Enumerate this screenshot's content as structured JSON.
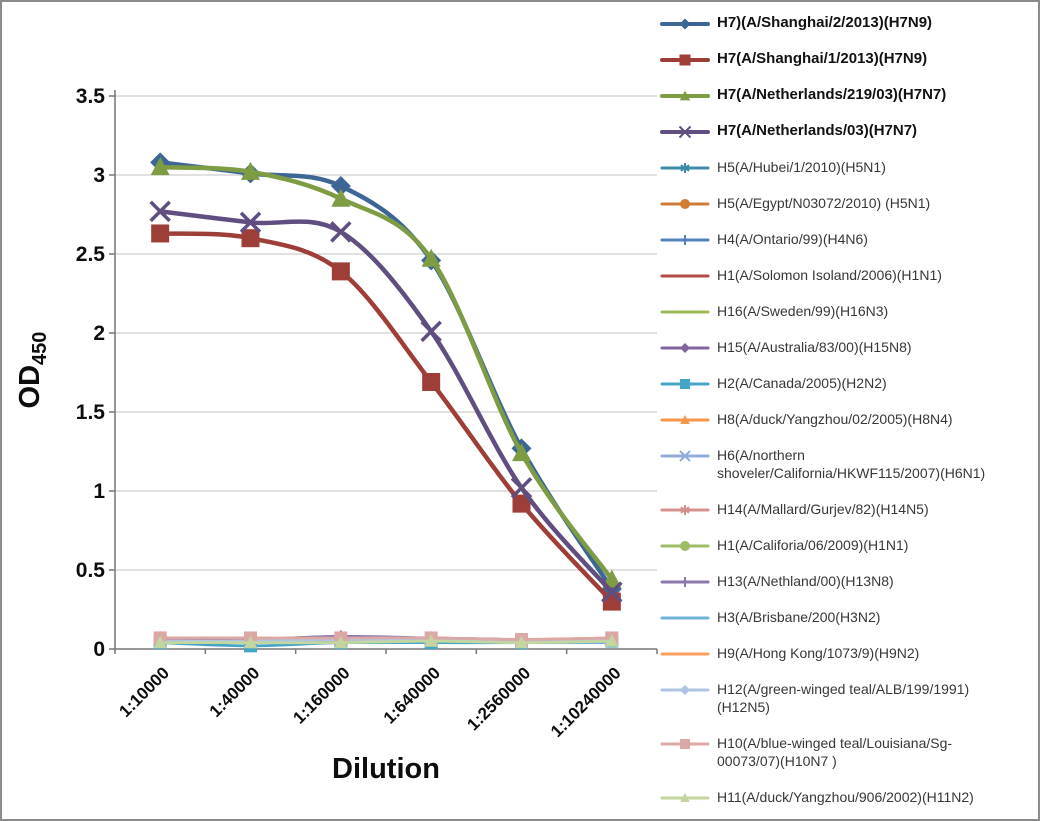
{
  "figure": {
    "border_color": "#8C8C8C",
    "background": "#FFFFFF"
  },
  "axis": {
    "line_color": "#757575",
    "grid_color": "#C3C3C3",
    "grid": true,
    "tick_labels_bold": true
  },
  "chart_data": {
    "type": "line",
    "title": "",
    "xlabel": "Dilution",
    "ylabel_main": "OD",
    "ylabel_sub": "450",
    "ylim": [
      0,
      3.5
    ],
    "ytick_step": 0.5,
    "yticks": [
      "3.5",
      "3",
      "2.5",
      "2",
      "1.5",
      "1",
      "0.5",
      "0"
    ],
    "categories": [
      "1:10000",
      "1:40000",
      "1:160000",
      "1:640000",
      "1:2560000",
      "1:10240000"
    ],
    "legend_position": "right",
    "smoothed_lines": true,
    "series": [
      {
        "name": "H7)(A/Shanghai/2/2013)(H7N9)",
        "color": "#3D6697",
        "marker": "diamond",
        "bold": true,
        "values": [
          3.08,
          3.01,
          2.93,
          2.46,
          1.27,
          0.38
        ]
      },
      {
        "name": "H7(A/Shanghai/1/2013)(H7N9)",
        "color": "#9E3E39",
        "marker": "square",
        "bold": true,
        "values": [
          2.63,
          2.6,
          2.39,
          1.69,
          0.92,
          0.3
        ]
      },
      {
        "name": "H7(A/Netherlands/219/03)(H7N7)",
        "color": "#7D9C43",
        "marker": "triangle",
        "bold": true,
        "values": [
          3.05,
          3.02,
          2.85,
          2.47,
          1.24,
          0.44
        ]
      },
      {
        "name": "H7(A/Netherlands/03)(H7N7)",
        "color": "#604E80",
        "marker": "x",
        "bold": true,
        "values": [
          2.77,
          2.7,
          2.64,
          2.01,
          1.02,
          0.36
        ]
      },
      {
        "name": "H5(A/Hubei/1/2010)(H5N1)",
        "color": "#3E8DA7",
        "marker": "asterisk",
        "bold": false,
        "values": [
          0.05,
          0.05,
          0.06,
          0.05,
          0.05,
          0.05
        ]
      },
      {
        "name": "H5(A/Egypt/N03072/2010) (H5N1)",
        "color": "#D07C34",
        "marker": "circle",
        "bold": false,
        "values": [
          0.06,
          0.06,
          0.06,
          0.06,
          0.06,
          0.06
        ]
      },
      {
        "name": "H4(A/Ontario/99)(H4N6)",
        "color": "#4F81BD",
        "marker": "plus",
        "bold": false,
        "values": [
          0.05,
          0.05,
          0.06,
          0.05,
          0.05,
          0.06
        ]
      },
      {
        "name": "H1(A/Solomon Isoland/2006)(H1N1)",
        "color": "#B04A45",
        "marker": "none",
        "bold": false,
        "values": [
          0.05,
          0.05,
          0.05,
          0.05,
          0.05,
          0.05
        ]
      },
      {
        "name": "H16(A/Sweden/99)(H16N3)",
        "color": "#9BBB59",
        "marker": "none",
        "bold": false,
        "values": [
          0.04,
          0.04,
          0.04,
          0.04,
          0.04,
          0.04
        ]
      },
      {
        "name": "H15(A/Australia/83/00)(H15N8)",
        "color": "#8064A2",
        "marker": "diamond",
        "bold": false,
        "values": [
          0.06,
          0.06,
          0.08,
          0.06,
          0.06,
          0.06
        ]
      },
      {
        "name": "H2(A/Canada/2005)(H2N2)",
        "color": "#45A5C4",
        "marker": "square",
        "bold": false,
        "values": [
          0.04,
          0.02,
          0.04,
          0.04,
          0.04,
          0.05
        ]
      },
      {
        "name": "H8(A/duck/Yangzhou/02/2005)(H8N4)",
        "color": "#F79646",
        "marker": "triangle",
        "bold": false,
        "values": [
          0.07,
          0.07,
          0.06,
          0.07,
          0.06,
          0.07
        ]
      },
      {
        "name": "H6(A/northern shoveler/California/HKWF115/2007)(H6N1)",
        "color": "#93ADDB",
        "marker": "x",
        "bold": false,
        "values": [
          0.05,
          0.05,
          0.05,
          0.06,
          0.05,
          0.05
        ]
      },
      {
        "name": "H14(A/Mallard/Gurjev/82)(H14N5)",
        "color": "#D8908D",
        "marker": "asterisk",
        "bold": false,
        "values": [
          0.06,
          0.06,
          0.07,
          0.06,
          0.06,
          0.06
        ]
      },
      {
        "name": "H1(A/Califoria/06/2009)(H1N1)",
        "color": "#9EBC64",
        "marker": "circle",
        "bold": false,
        "values": [
          0.05,
          0.05,
          0.05,
          0.05,
          0.05,
          0.05
        ]
      },
      {
        "name": "H13(A/Nethland/00)(H13N8)",
        "color": "#8C77AD",
        "marker": "plus",
        "bold": false,
        "values": [
          0.06,
          0.06,
          0.08,
          0.07,
          0.06,
          0.06
        ]
      },
      {
        "name": "H3(A/Brisbane/200(H3N2)",
        "color": "#6FB3D9",
        "marker": "none",
        "bold": false,
        "values": [
          0.04,
          0.04,
          0.04,
          0.05,
          0.04,
          0.04
        ]
      },
      {
        "name": "H9(A/Hong Kong/1073/9)(H9N2)",
        "color": "#FAA05F",
        "marker": "none",
        "bold": false,
        "values": [
          0.07,
          0.07,
          0.06,
          0.06,
          0.06,
          0.07
        ]
      },
      {
        "name": "H12(A/green-winged teal/ALB/199/1991)(H12N5)",
        "color": "#AFC4E2",
        "marker": "diamond",
        "bold": false,
        "values": [
          0.05,
          0.05,
          0.06,
          0.06,
          0.05,
          0.06
        ]
      },
      {
        "name": "H10(A/blue-winged teal/Louisiana/Sg-00073/07)(H10N7 )",
        "color": "#DBA8A6",
        "marker": "square",
        "bold": false,
        "values": [
          0.07,
          0.07,
          0.07,
          0.07,
          0.06,
          0.07
        ]
      },
      {
        "name": "H11(A/duck/Yangzhou/906/2002)(H11N2)",
        "color": "#C3D69F",
        "marker": "triangle",
        "bold": false,
        "values": [
          0.04,
          0.04,
          0.04,
          0.05,
          0.04,
          0.05
        ]
      }
    ]
  }
}
